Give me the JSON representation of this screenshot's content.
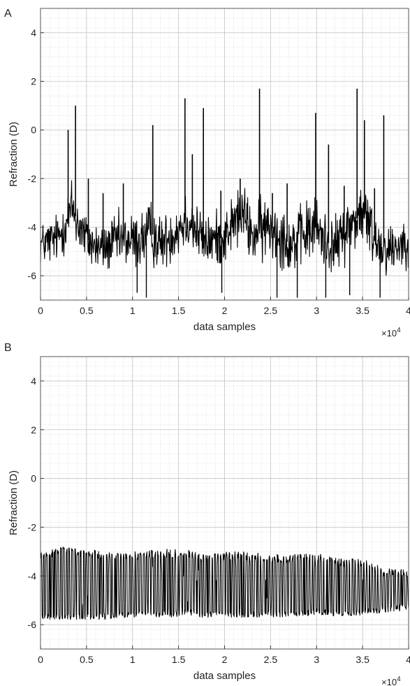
{
  "chart_data": [
    {
      "type": "line",
      "panel_label": "A",
      "title": "",
      "xlabel": "data samples",
      "ylabel": "Refraction (D)",
      "x_exponent_label": "×10",
      "x_exponent_power": "4",
      "xlim": [
        0,
        4
      ],
      "ylim": [
        -7,
        5
      ],
      "xticks": [
        0,
        0.5,
        1,
        1.5,
        2,
        2.5,
        3,
        3.5,
        4
      ],
      "xtick_labels": [
        "0",
        "0.5",
        "1",
        "1.5",
        "2",
        "2.5",
        "3",
        "3.5",
        "4"
      ],
      "yticks": [
        -6,
        -4,
        -2,
        0,
        2,
        4
      ],
      "ytick_labels": [
        "-6",
        "-4",
        "-2",
        "0",
        "2",
        "4"
      ],
      "grid": true,
      "minor_grid": true,
      "color": "#000000",
      "samples_x_scale": 10000,
      "trace_envelope": {
        "x": [
          0,
          0.1,
          0.2,
          0.3,
          0.35,
          0.4,
          0.5,
          0.6,
          0.7,
          0.8,
          0.9,
          1.0,
          1.1,
          1.2,
          1.3,
          1.4,
          1.5,
          1.6,
          1.7,
          1.8,
          1.9,
          2.0,
          2.1,
          2.2,
          2.3,
          2.4,
          2.5,
          2.6,
          2.7,
          2.8,
          2.9,
          3.0,
          3.1,
          3.2,
          3.3,
          3.4,
          3.5,
          3.6,
          3.7,
          3.8,
          3.9,
          4.0
        ],
        "base": [
          -4.7,
          -4.6,
          -4.4,
          -3.6,
          -3.2,
          -3.8,
          -4.5,
          -4.8,
          -4.9,
          -4.6,
          -4.5,
          -4.6,
          -4.5,
          -4.2,
          -4.7,
          -4.4,
          -4.0,
          -3.6,
          -4.2,
          -4.6,
          -4.5,
          -4.4,
          -3.8,
          -3.4,
          -4.4,
          -4.1,
          -4.0,
          -4.2,
          -4.7,
          -4.5,
          -4.2,
          -4.0,
          -4.6,
          -4.8,
          -4.2,
          -3.8,
          -3.4,
          -4.2,
          -4.8,
          -4.9,
          -4.7,
          -4.5
        ],
        "spread": [
          0.8,
          0.9,
          0.9,
          1.1,
          1.3,
          1.1,
          1.0,
          0.9,
          0.9,
          1.0,
          1.0,
          1.1,
          1.1,
          1.2,
          1.0,
          1.0,
          1.2,
          1.2,
          1.1,
          1.0,
          1.0,
          1.0,
          1.1,
          1.1,
          1.1,
          1.2,
          1.2,
          1.2,
          1.1,
          1.1,
          1.2,
          1.2,
          1.1,
          1.0,
          1.1,
          1.2,
          1.2,
          1.2,
          1.0,
          1.0,
          0.9,
          0.9
        ]
      },
      "spikes": [
        {
          "x": 0.3,
          "y": 0.0
        },
        {
          "x": 0.38,
          "y": 1.0
        },
        {
          "x": 0.52,
          "y": -2.0
        },
        {
          "x": 0.68,
          "y": -2.6
        },
        {
          "x": 0.9,
          "y": -2.2
        },
        {
          "x": 1.22,
          "y": 0.2
        },
        {
          "x": 1.57,
          "y": 1.3
        },
        {
          "x": 1.65,
          "y": -1.0
        },
        {
          "x": 1.77,
          "y": 0.9
        },
        {
          "x": 1.96,
          "y": -2.5
        },
        {
          "x": 2.17,
          "y": -2.0
        },
        {
          "x": 2.38,
          "y": 1.7
        },
        {
          "x": 2.52,
          "y": -2.6
        },
        {
          "x": 2.68,
          "y": -2.2
        },
        {
          "x": 2.99,
          "y": 0.7
        },
        {
          "x": 3.13,
          "y": -0.6
        },
        {
          "x": 3.3,
          "y": -2.3
        },
        {
          "x": 3.44,
          "y": 1.7
        },
        {
          "x": 3.52,
          "y": 0.4
        },
        {
          "x": 3.63,
          "y": -2.4
        },
        {
          "x": 3.73,
          "y": 0.6
        }
      ],
      "dips": [
        {
          "x": 1.05,
          "y": -6.7
        },
        {
          "x": 1.15,
          "y": -6.9
        },
        {
          "x": 1.97,
          "y": -6.7
        },
        {
          "x": 2.57,
          "y": -6.9
        },
        {
          "x": 2.79,
          "y": -6.9
        },
        {
          "x": 3.1,
          "y": -6.9
        },
        {
          "x": 3.36,
          "y": -6.8
        },
        {
          "x": 3.69,
          "y": -6.9
        }
      ]
    },
    {
      "type": "line",
      "panel_label": "B",
      "title": "",
      "xlabel": "data samples",
      "ylabel": "Refraction (D)",
      "x_exponent_label": "×10",
      "x_exponent_power": "4",
      "xlim": [
        0,
        4
      ],
      "ylim": [
        -7,
        5
      ],
      "xticks": [
        0,
        0.5,
        1,
        1.5,
        2,
        2.5,
        3,
        3.5,
        4
      ],
      "xtick_labels": [
        "0",
        "0.5",
        "1",
        "1.5",
        "2",
        "2.5",
        "3",
        "3.5",
        "4"
      ],
      "yticks": [
        -6,
        -4,
        -2,
        0,
        2,
        4
      ],
      "ytick_labels": [
        "-6",
        "-4",
        "-2",
        "0",
        "2",
        "4"
      ],
      "grid": true,
      "minor_grid": true,
      "color": "#000000",
      "samples_x_scale": 10000,
      "trace_envelope": {
        "x": [
          0,
          0.25,
          0.5,
          0.75,
          1.0,
          1.25,
          1.5,
          1.6,
          1.75,
          2.0,
          2.25,
          2.5,
          2.75,
          3.0,
          3.1,
          3.25,
          3.5,
          3.75,
          4.0
        ],
        "upper": [
          -3.0,
          -2.8,
          -2.9,
          -3.0,
          -3.0,
          -2.9,
          -2.9,
          -2.9,
          -3.1,
          -3.0,
          -3.0,
          -3.1,
          -3.1,
          -3.1,
          -3.1,
          -3.3,
          -3.3,
          -3.7,
          -3.7
        ],
        "lower": [
          -5.8,
          -5.8,
          -5.8,
          -5.8,
          -5.7,
          -5.7,
          -5.7,
          -5.6,
          -5.7,
          -5.7,
          -5.7,
          -5.7,
          -5.7,
          -5.6,
          -5.6,
          -5.7,
          -5.6,
          -5.5,
          -5.4
        ]
      }
    }
  ]
}
